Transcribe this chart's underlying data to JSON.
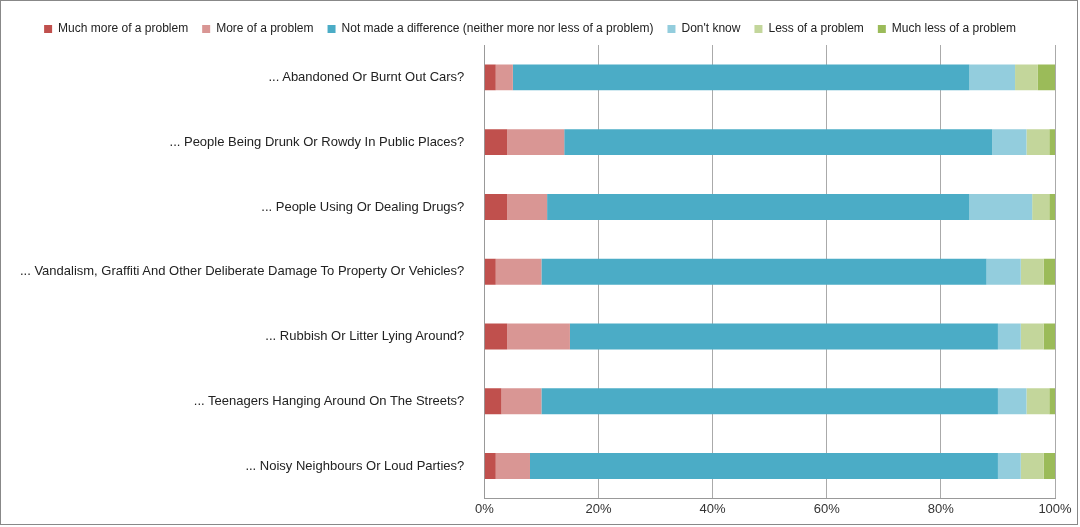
{
  "chart_data": {
    "type": "bar",
    "orientation": "horizontal",
    "stacked": true,
    "legend": "top",
    "grid": "x",
    "categories": [
      "... Abandoned Or Burnt Out Cars?",
      "... People Being Drunk Or Rowdy In Public Places?",
      "... People Using Or Dealing Drugs?",
      "... Vandalism, Graffiti And Other Deliberate Damage To Property Or Vehicles?",
      "... Rubbish Or Litter Lying Around?",
      "... Teenagers Hanging Around On The Streets?",
      "... Noisy Neighbours Or Loud Parties?"
    ],
    "xlim": [
      0,
      100
    ],
    "xticks": [
      {
        "value": 0,
        "label": "0%"
      },
      {
        "value": 20,
        "label": "20%"
      },
      {
        "value": 40,
        "label": "40%"
      },
      {
        "value": 60,
        "label": "60%"
      },
      {
        "value": 80,
        "label": "80%"
      },
      {
        "value": 100,
        "label": "100%"
      }
    ],
    "series": [
      {
        "name": "Much more of a problem",
        "color": "#c0504d",
        "values": [
          2,
          4,
          4,
          2,
          4,
          3,
          2
        ]
      },
      {
        "name": "More of a problem",
        "color": "#d99694",
        "values": [
          3,
          10,
          7,
          8,
          11,
          7,
          6
        ]
      },
      {
        "name": "Not made a difference (neither more nor less of a problem)",
        "color": "#4bacc6",
        "values": [
          80,
          75,
          74,
          78,
          75,
          80,
          82
        ]
      },
      {
        "name": "Don't know",
        "color": "#93cddd",
        "values": [
          8,
          6,
          11,
          6,
          4,
          5,
          4
        ]
      },
      {
        "name": "Less of a problem",
        "color": "#c3d69b",
        "values": [
          4,
          4,
          3,
          4,
          4,
          4,
          4
        ]
      },
      {
        "name": "Much less of a problem",
        "color": "#9bbb59",
        "values": [
          3,
          1,
          1,
          2,
          2,
          1,
          2
        ]
      }
    ]
  }
}
